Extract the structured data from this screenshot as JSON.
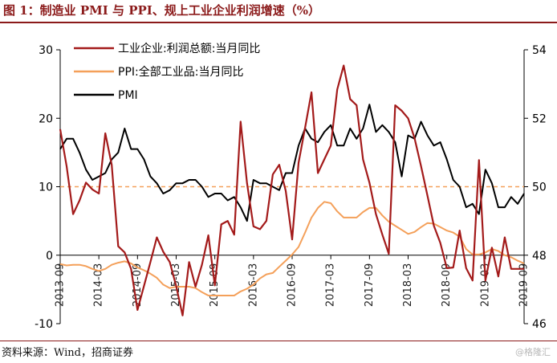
{
  "title": "图 1：制造业 PMI 与 PPI、规上工业企业利润增速（%）",
  "source": "资料来源：Wind，招商证券",
  "watermark": "@格隆汇",
  "colors": {
    "profit": "#a31a1a",
    "ppi": "#f4a05a",
    "pmi": "#000000",
    "refline": "#f4a05a",
    "accent": "#8b1a1a"
  },
  "chart_data": {
    "type": "line",
    "legend_position": "top-left",
    "grid": false,
    "x_tick_labels": [
      "2013-09",
      "2014-03",
      "2014-09",
      "2015-03",
      "2015-09",
      "2016-03",
      "2016-09",
      "2017-03",
      "2017-09",
      "2018-03",
      "2018-09",
      "2019-03",
      "2019-09"
    ],
    "y_left": {
      "range": [
        -10,
        30
      ],
      "ticks": [
        -10,
        0,
        10,
        20,
        30
      ]
    },
    "y_right": {
      "range": [
        46,
        54
      ],
      "ticks": [
        46,
        48,
        50,
        52,
        54
      ]
    },
    "reference_line": {
      "axis": "left",
      "value": 10,
      "style": "dashed"
    },
    "series": [
      {
        "name": "工业企业:利润总额:当月同比",
        "axis": "left",
        "color": "#a31a1a",
        "x": [
          "2013-09",
          "2013-10",
          "2013-11",
          "2013-12",
          "2014-01",
          "2014-02",
          "2014-03",
          "2014-04",
          "2014-05",
          "2014-06",
          "2014-07",
          "2014-08",
          "2014-09",
          "2014-10",
          "2014-11",
          "2014-12",
          "2015-01",
          "2015-02",
          "2015-03",
          "2015-04",
          "2015-05",
          "2015-06",
          "2015-07",
          "2015-08",
          "2015-09",
          "2015-10",
          "2015-11",
          "2015-12",
          "2016-01",
          "2016-02",
          "2016-03",
          "2016-04",
          "2016-05",
          "2016-06",
          "2016-07",
          "2016-08",
          "2016-09",
          "2016-10",
          "2016-11",
          "2016-12",
          "2017-01",
          "2017-02",
          "2017-03",
          "2017-04",
          "2017-05",
          "2017-06",
          "2017-07",
          "2017-08",
          "2017-09",
          "2017-10",
          "2017-11",
          "2017-12",
          "2018-01",
          "2018-02",
          "2018-03",
          "2018-04",
          "2018-05",
          "2018-06",
          "2018-07",
          "2018-08",
          "2018-09",
          "2018-10",
          "2018-11",
          "2018-12",
          "2019-01",
          "2019-02",
          "2019-03",
          "2019-04",
          "2019-05",
          "2019-06",
          "2019-07",
          "2019-08",
          "2019-09"
        ],
        "values": [
          18.4,
          13.0,
          6.0,
          8.0,
          10.6,
          9.6,
          9.0,
          17.8,
          13.2,
          1.3,
          0.4,
          -2.0,
          -8.0,
          -4.5,
          -1.0,
          2.6,
          0.5,
          -1.0,
          -4.5,
          -8.8,
          -1.0,
          -4.6,
          -1.4,
          2.9,
          -4.4,
          4.5,
          5.0,
          3.0,
          19.5,
          10.5,
          4.2,
          3.8,
          5.0,
          11.8,
          13.2,
          9.4,
          2.3,
          13.5,
          18.6,
          23.8,
          12.0,
          14.0,
          16.0,
          24.2,
          27.7,
          22.8,
          21.9,
          14.0,
          10.6,
          6.0,
          3.0,
          0.2,
          21.9,
          21.1,
          20.0,
          17.1,
          13.0,
          8.7,
          4.3,
          1.8,
          -1.9,
          -1.8,
          3.6,
          -1.9,
          -3.7,
          13.9,
          -3.7,
          1.1,
          -3.1,
          2.6,
          -2.0,
          -2.0,
          -2.0
        ]
      },
      {
        "name": "PPI:全部工业品:当月同比",
        "axis": "left",
        "color": "#f4a05a",
        "x": [
          "2013-09",
          "2013-10",
          "2013-11",
          "2013-12",
          "2014-01",
          "2014-02",
          "2014-03",
          "2014-04",
          "2014-05",
          "2014-06",
          "2014-07",
          "2014-08",
          "2014-09",
          "2014-10",
          "2014-11",
          "2014-12",
          "2015-01",
          "2015-02",
          "2015-03",
          "2015-04",
          "2015-05",
          "2015-06",
          "2015-07",
          "2015-08",
          "2015-09",
          "2015-10",
          "2015-11",
          "2015-12",
          "2016-01",
          "2016-02",
          "2016-03",
          "2016-04",
          "2016-05",
          "2016-06",
          "2016-07",
          "2016-08",
          "2016-09",
          "2016-10",
          "2016-11",
          "2016-12",
          "2017-01",
          "2017-02",
          "2017-03",
          "2017-04",
          "2017-05",
          "2017-06",
          "2017-07",
          "2017-08",
          "2017-09",
          "2017-10",
          "2017-11",
          "2017-12",
          "2018-01",
          "2018-02",
          "2018-03",
          "2018-04",
          "2018-05",
          "2018-06",
          "2018-07",
          "2018-08",
          "2018-09",
          "2018-10",
          "2018-11",
          "2018-12",
          "2019-01",
          "2019-02",
          "2019-03",
          "2019-04",
          "2019-05",
          "2019-06",
          "2019-07",
          "2019-08",
          "2019-09"
        ],
        "values": [
          -1.3,
          -1.5,
          -1.4,
          -1.4,
          -1.6,
          -2.0,
          -2.3,
          -2.0,
          -1.4,
          -1.1,
          -0.9,
          -1.2,
          -1.8,
          -2.2,
          -2.7,
          -3.3,
          -4.3,
          -4.8,
          -4.6,
          -4.6,
          -4.6,
          -4.8,
          -5.4,
          -5.9,
          -5.9,
          -5.9,
          -5.9,
          -5.9,
          -5.3,
          -4.9,
          -4.3,
          -3.4,
          -2.8,
          -2.6,
          -1.7,
          -0.8,
          0.1,
          1.2,
          3.3,
          5.5,
          6.9,
          7.8,
          7.6,
          6.4,
          5.5,
          5.5,
          5.5,
          6.3,
          6.9,
          6.9,
          5.8,
          4.9,
          4.3,
          3.7,
          3.1,
          3.4,
          4.1,
          4.7,
          4.6,
          4.1,
          3.6,
          3.3,
          2.7,
          0.9,
          0.1,
          0.1,
          0.4,
          0.9,
          0.6,
          0.0,
          -0.3,
          -0.8,
          -1.2
        ]
      },
      {
        "name": "PMI",
        "axis": "right",
        "color": "#000000",
        "x": [
          "2013-09",
          "2013-10",
          "2013-11",
          "2013-12",
          "2014-01",
          "2014-02",
          "2014-03",
          "2014-04",
          "2014-05",
          "2014-06",
          "2014-07",
          "2014-08",
          "2014-09",
          "2014-10",
          "2014-11",
          "2014-12",
          "2015-01",
          "2015-02",
          "2015-03",
          "2015-04",
          "2015-05",
          "2015-06",
          "2015-07",
          "2015-08",
          "2015-09",
          "2015-10",
          "2015-11",
          "2015-12",
          "2016-01",
          "2016-02",
          "2016-03",
          "2016-04",
          "2016-05",
          "2016-06",
          "2016-07",
          "2016-08",
          "2016-09",
          "2016-10",
          "2016-11",
          "2016-12",
          "2017-01",
          "2017-02",
          "2017-03",
          "2017-04",
          "2017-05",
          "2017-06",
          "2017-07",
          "2017-08",
          "2017-09",
          "2017-10",
          "2017-11",
          "2017-12",
          "2018-01",
          "2018-02",
          "2018-03",
          "2018-04",
          "2018-05",
          "2018-06",
          "2018-07",
          "2018-08",
          "2018-09",
          "2018-10",
          "2018-11",
          "2018-12",
          "2019-01",
          "2019-02",
          "2019-03",
          "2019-04",
          "2019-05",
          "2019-06",
          "2019-07",
          "2019-08",
          "2019-09"
        ],
        "values": [
          51.1,
          51.4,
          51.4,
          51.0,
          50.5,
          50.2,
          50.3,
          50.4,
          50.8,
          51.0,
          51.7,
          51.1,
          51.1,
          50.8,
          50.3,
          50.1,
          49.8,
          49.9,
          50.1,
          50.1,
          50.2,
          50.2,
          50.0,
          49.7,
          49.8,
          49.8,
          49.6,
          49.7,
          49.4,
          49.0,
          50.2,
          50.1,
          50.1,
          50.0,
          49.9,
          50.4,
          50.4,
          51.2,
          51.7,
          51.4,
          51.3,
          51.6,
          51.8,
          51.2,
          51.2,
          51.7,
          51.4,
          51.7,
          52.4,
          51.6,
          51.8,
          51.6,
          51.3,
          50.3,
          51.5,
          51.4,
          51.9,
          51.5,
          51.2,
          51.3,
          50.8,
          50.2,
          50.0,
          49.4,
          49.5,
          49.2,
          50.5,
          50.1,
          49.4,
          49.4,
          49.7,
          49.5,
          49.8
        ]
      }
    ]
  }
}
